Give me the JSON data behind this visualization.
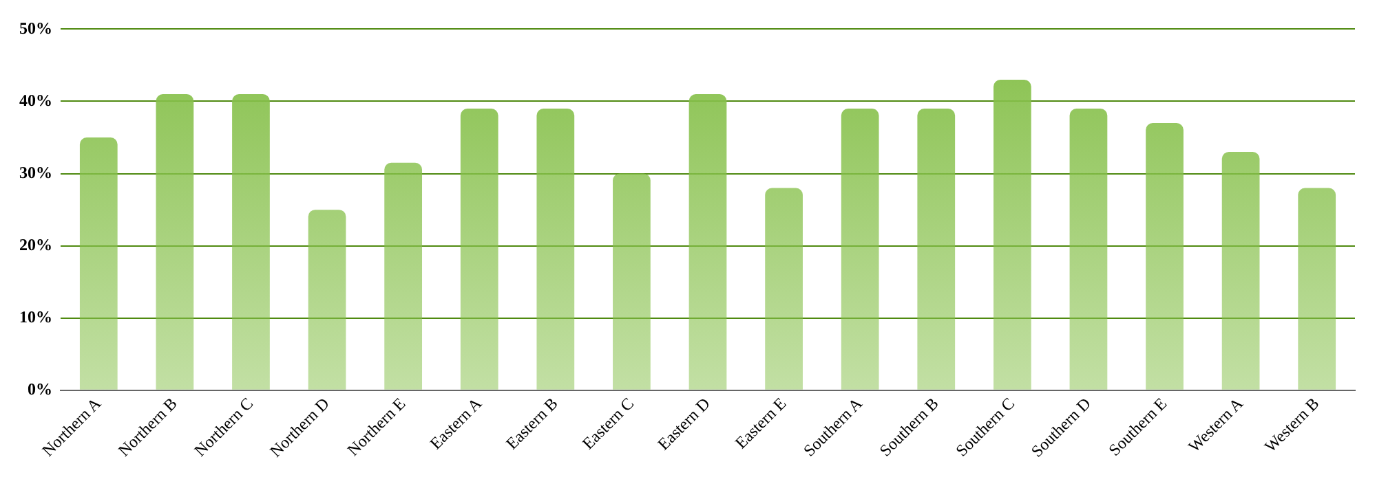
{
  "chart_data": {
    "type": "bar",
    "categories": [
      "Northern A",
      "Northern B",
      "Northern C",
      "Northern D",
      "Northern E",
      "Eastern A",
      "Eastern B",
      "Eastern C",
      "Eastern D",
      "Eastern E",
      "Southern A",
      "Southern B",
      "Southern C",
      "Southern D",
      "Southern E",
      "Western A",
      "Western B"
    ],
    "values": [
      35,
      41,
      41,
      25,
      31.5,
      39,
      39,
      30,
      41,
      28,
      39,
      39,
      43,
      39,
      37,
      33,
      28
    ],
    "color": "#86c04a",
    "ylim": [
      0,
      50
    ],
    "yticks": [
      {
        "value": 0,
        "label": "0%"
      },
      {
        "value": 10,
        "label": "10%"
      },
      {
        "value": 20,
        "label": "20%"
      },
      {
        "value": 30,
        "label": "30%"
      },
      {
        "value": 40,
        "label": "40%"
      },
      {
        "value": 50,
        "label": "50%"
      }
    ],
    "grid": "y",
    "legend": false
  }
}
